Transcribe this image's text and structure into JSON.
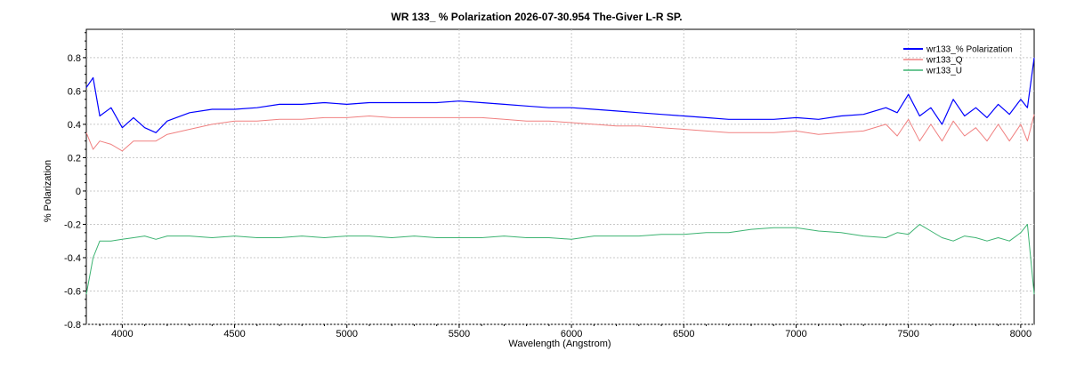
{
  "chart_data": {
    "type": "line",
    "title": "WR 133_ % Polarization  2026-07-30.954  The-Giver L-R SP.",
    "xlabel": "Wavelength (Angstrom)",
    "ylabel": "% Polarization",
    "xlim": [
      3840,
      8060
    ],
    "ylim": [
      -0.8,
      0.97
    ],
    "x_ticks": [
      4000,
      4500,
      5000,
      5500,
      6000,
      6500,
      7000,
      7500,
      8000
    ],
    "y_ticks": [
      -0.8,
      -0.6,
      -0.4,
      -0.2,
      0,
      0.2,
      0.4,
      0.6,
      0.8
    ],
    "grid": true,
    "legend_position": "top-right",
    "x": [
      3840,
      3870,
      3900,
      3950,
      4000,
      4050,
      4100,
      4150,
      4200,
      4300,
      4400,
      4500,
      4600,
      4700,
      4800,
      4900,
      5000,
      5100,
      5200,
      5300,
      5400,
      5500,
      5600,
      5700,
      5800,
      5900,
      6000,
      6100,
      6200,
      6300,
      6400,
      6500,
      6600,
      6700,
      6800,
      6900,
      7000,
      7100,
      7200,
      7300,
      7400,
      7450,
      7500,
      7550,
      7600,
      7650,
      7700,
      7750,
      7800,
      7850,
      7900,
      7950,
      8000,
      8030,
      8060
    ],
    "series": [
      {
        "name": "wr133_% Polarization",
        "color": "#0000ff",
        "values": [
          0.62,
          0.68,
          0.45,
          0.5,
          0.38,
          0.44,
          0.38,
          0.35,
          0.42,
          0.47,
          0.49,
          0.49,
          0.5,
          0.52,
          0.52,
          0.53,
          0.52,
          0.53,
          0.53,
          0.53,
          0.53,
          0.54,
          0.53,
          0.52,
          0.51,
          0.5,
          0.5,
          0.49,
          0.48,
          0.47,
          0.46,
          0.45,
          0.44,
          0.43,
          0.43,
          0.43,
          0.44,
          0.43,
          0.45,
          0.46,
          0.5,
          0.47,
          0.58,
          0.45,
          0.5,
          0.4,
          0.55,
          0.45,
          0.5,
          0.44,
          0.52,
          0.46,
          0.55,
          0.5,
          0.8
        ]
      },
      {
        "name": "wr133_Q",
        "color": "#f08080",
        "values": [
          0.35,
          0.25,
          0.3,
          0.28,
          0.24,
          0.3,
          0.3,
          0.3,
          0.34,
          0.37,
          0.4,
          0.42,
          0.42,
          0.43,
          0.43,
          0.44,
          0.44,
          0.45,
          0.44,
          0.44,
          0.44,
          0.44,
          0.44,
          0.43,
          0.42,
          0.42,
          0.41,
          0.4,
          0.39,
          0.39,
          0.38,
          0.37,
          0.36,
          0.35,
          0.35,
          0.35,
          0.36,
          0.34,
          0.35,
          0.36,
          0.4,
          0.33,
          0.43,
          0.3,
          0.4,
          0.3,
          0.42,
          0.33,
          0.38,
          0.3,
          0.4,
          0.3,
          0.4,
          0.3,
          0.46
        ]
      },
      {
        "name": "wr133_U",
        "color": "#3cb371",
        "values": [
          -0.62,
          -0.4,
          -0.3,
          -0.3,
          -0.29,
          -0.28,
          -0.27,
          -0.29,
          -0.27,
          -0.27,
          -0.28,
          -0.27,
          -0.28,
          -0.28,
          -0.27,
          -0.28,
          -0.27,
          -0.27,
          -0.28,
          -0.27,
          -0.28,
          -0.28,
          -0.28,
          -0.27,
          -0.28,
          -0.28,
          -0.29,
          -0.27,
          -0.27,
          -0.27,
          -0.26,
          -0.26,
          -0.25,
          -0.25,
          -0.23,
          -0.22,
          -0.22,
          -0.24,
          -0.25,
          -0.27,
          -0.28,
          -0.25,
          -0.26,
          -0.2,
          -0.24,
          -0.28,
          -0.3,
          -0.27,
          -0.28,
          -0.3,
          -0.28,
          -0.3,
          -0.25,
          -0.2,
          -0.62
        ]
      }
    ]
  }
}
